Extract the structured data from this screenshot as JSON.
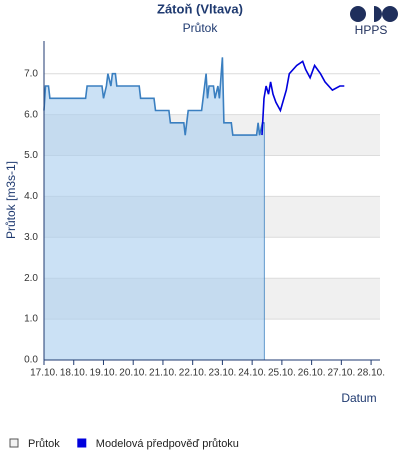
{
  "chart_data": {
    "type": "line",
    "title": "Zátoň (Vltava)",
    "subtitle": "Průtok",
    "y_label": "Průtok [m3s-1]",
    "x_label": "Datum",
    "xlim": [
      17,
      28.3
    ],
    "xticks": [
      {
        "value": 17,
        "label": "17.10."
      },
      {
        "value": 18,
        "label": "18.10."
      },
      {
        "value": 19,
        "label": "19.10."
      },
      {
        "value": 20,
        "label": "20.10."
      },
      {
        "value": 21,
        "label": "21.10."
      },
      {
        "value": 22,
        "label": "22.10."
      },
      {
        "value": 23,
        "label": "23.10."
      },
      {
        "value": 24,
        "label": "24.10."
      },
      {
        "value": 25,
        "label": "25.10."
      },
      {
        "value": 26,
        "label": "26.10."
      },
      {
        "value": 27,
        "label": "27.10."
      },
      {
        "value": 28,
        "label": "28.10."
      }
    ],
    "ylim": [
      0,
      7.8
    ],
    "yticks": [
      {
        "value": 0,
        "label": "0.0"
      },
      {
        "value": 1,
        "label": "1.0"
      },
      {
        "value": 2,
        "label": "2.0"
      },
      {
        "value": 3,
        "label": "3.0"
      },
      {
        "value": 4,
        "label": "4.0"
      },
      {
        "value": 5,
        "label": "5.0"
      },
      {
        "value": 6,
        "label": "6.0"
      },
      {
        "value": 7,
        "label": "7.0"
      }
    ],
    "grid": true,
    "series": [
      {
        "name": "Průtok",
        "color": "#3a7fc0",
        "fill": "#a9cdee",
        "area": true,
        "x": [
          17.0,
          17.05,
          17.15,
          17.2,
          18.4,
          18.45,
          18.95,
          19.0,
          19.1,
          19.15,
          19.25,
          19.3,
          19.4,
          19.45,
          20.2,
          20.25,
          20.7,
          20.75,
          21.2,
          21.25,
          21.7,
          21.75,
          21.8,
          21.85,
          22.3,
          22.35,
          22.45,
          22.5,
          22.55,
          22.7,
          22.75,
          22.85,
          22.9,
          23.0,
          23.05,
          23.3,
          23.35,
          24.15,
          24.2,
          24.25,
          24.35,
          24.41
        ],
        "values": [
          6.1,
          6.7,
          6.7,
          6.4,
          6.4,
          6.7,
          6.7,
          6.4,
          6.7,
          7.0,
          6.7,
          7.0,
          7.0,
          6.7,
          6.7,
          6.4,
          6.4,
          6.1,
          6.1,
          5.8,
          5.8,
          5.5,
          5.8,
          6.1,
          6.1,
          6.4,
          7.0,
          6.4,
          6.7,
          6.7,
          6.4,
          6.7,
          6.4,
          7.4,
          5.8,
          5.8,
          5.5,
          5.5,
          5.8,
          5.5,
          5.8,
          5.8
        ]
      },
      {
        "name": "Modelová předpověď průtoku",
        "color": "#0000dd",
        "area": false,
        "x": [
          24.33,
          24.4,
          24.47,
          24.55,
          24.62,
          24.7,
          24.8,
          24.95,
          25.15,
          25.25,
          25.5,
          25.7,
          25.8,
          25.95,
          26.1,
          26.3,
          26.45,
          26.7,
          26.95,
          27.1
        ],
        "values": [
          5.5,
          6.4,
          6.7,
          6.5,
          6.8,
          6.5,
          6.3,
          6.1,
          6.6,
          7.0,
          7.2,
          7.3,
          7.1,
          6.9,
          7.2,
          7.0,
          6.8,
          6.6,
          6.7,
          6.7
        ]
      }
    ]
  },
  "logo": {
    "text": "HPPS",
    "color": "#1f2f5c"
  }
}
